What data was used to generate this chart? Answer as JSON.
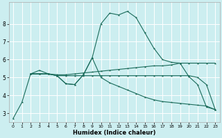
{
  "bg_color": "#cceef0",
  "grid_color": "#ffffff",
  "line_color": "#1a6b5a",
  "xlabel": "Humidex (Indice chaleur)",
  "xlim": [
    -0.5,
    23.5
  ],
  "ylim": [
    2.5,
    9.2
  ],
  "lines": [
    {
      "x": [
        0,
        1,
        2,
        3,
        4,
        5,
        6,
        7,
        8,
        9,
        10,
        11,
        12,
        13,
        14,
        15,
        16,
        17,
        18,
        19,
        20,
        21,
        22,
        23
      ],
      "y": [
        2.7,
        3.6,
        5.2,
        5.4,
        5.2,
        5.1,
        4.65,
        4.6,
        5.15,
        6.1,
        8.0,
        8.6,
        8.5,
        8.7,
        8.35,
        7.5,
        6.65,
        6.0,
        5.85,
        5.8,
        5.05,
        4.6,
        3.35,
        3.2
      ]
    },
    {
      "x": [
        2,
        3,
        4,
        5,
        6,
        7,
        8,
        9,
        10,
        11,
        12,
        13,
        14,
        15,
        16,
        17,
        18,
        19,
        20,
        21,
        22,
        23
      ],
      "y": [
        5.2,
        5.2,
        5.2,
        5.15,
        5.15,
        5.2,
        5.25,
        5.3,
        5.35,
        5.4,
        5.45,
        5.5,
        5.55,
        5.6,
        5.65,
        5.65,
        5.7,
        5.8,
        5.8,
        5.8,
        5.8,
        5.8
      ]
    },
    {
      "x": [
        2,
        3,
        4,
        5,
        6,
        7,
        8,
        9,
        10,
        11,
        12,
        13,
        14,
        15,
        16,
        17,
        18,
        19,
        20,
        21,
        22,
        23
      ],
      "y": [
        5.2,
        5.2,
        5.2,
        5.1,
        5.1,
        5.1,
        5.1,
        5.1,
        5.1,
        5.1,
        5.1,
        5.1,
        5.1,
        5.1,
        5.1,
        5.1,
        5.1,
        5.1,
        5.1,
        5.0,
        4.6,
        3.2
      ]
    },
    {
      "x": [
        2,
        3,
        4,
        5,
        6,
        7,
        8,
        9,
        10,
        11,
        12,
        13,
        14,
        15,
        16,
        17,
        18,
        19,
        20,
        21,
        22,
        23
      ],
      "y": [
        5.2,
        5.2,
        5.2,
        5.1,
        4.65,
        4.6,
        5.15,
        6.1,
        5.0,
        4.7,
        4.5,
        4.3,
        4.1,
        3.9,
        3.75,
        3.65,
        3.6,
        3.55,
        3.5,
        3.45,
        3.4,
        3.2
      ]
    }
  ],
  "xticks": [
    0,
    1,
    2,
    3,
    4,
    5,
    6,
    7,
    8,
    9,
    10,
    11,
    12,
    13,
    14,
    15,
    16,
    17,
    18,
    19,
    20,
    21,
    22,
    23
  ],
  "yticks": [
    3,
    4,
    5,
    6,
    7,
    8
  ],
  "ytick_labels": [
    "3",
    "4",
    "5",
    "6",
    "7",
    "8"
  ]
}
